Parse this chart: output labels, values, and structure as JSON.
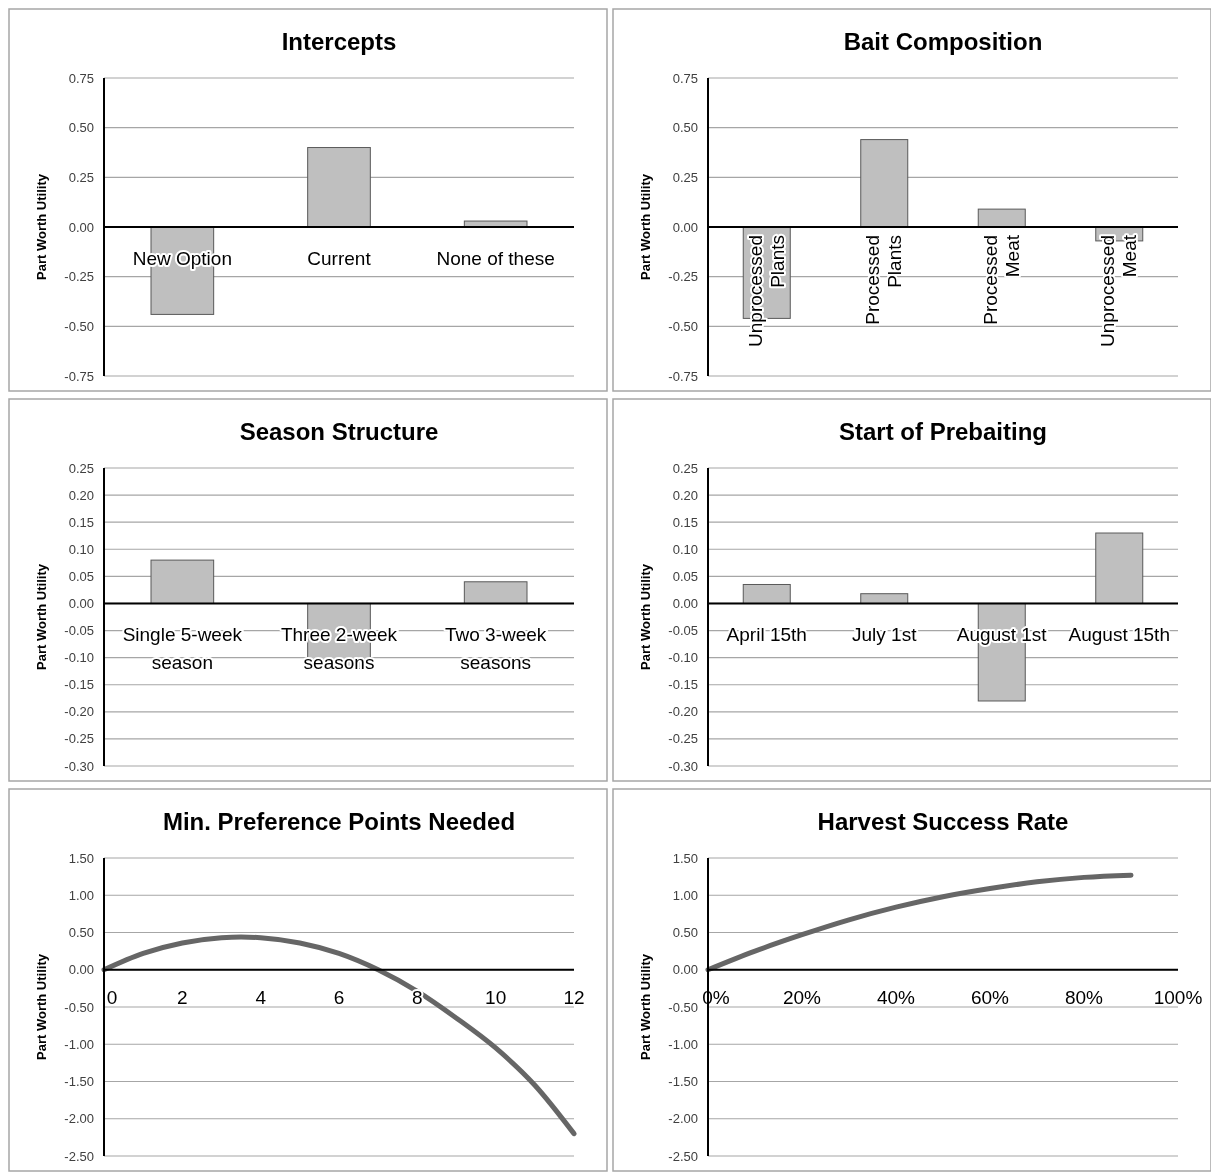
{
  "chart_data": [
    {
      "type": "bar",
      "title": "Intercepts",
      "ylabel": "Part Worth Utility",
      "categories": [
        "New Option",
        "Current",
        "None of these"
      ],
      "values": [
        -0.44,
        0.4,
        0.03
      ],
      "color": "#bfbfbf",
      "ylim": [
        -0.75,
        0.75
      ],
      "yticks": [
        {
          "value": -0.75,
          "label": "-0.75"
        },
        {
          "value": -0.5,
          "label": "-0.50"
        },
        {
          "value": -0.25,
          "label": "-0.25"
        },
        {
          "value": 0,
          "label": "0.00"
        },
        {
          "value": 0.25,
          "label": "0.25"
        },
        {
          "value": 0.5,
          "label": "0.50"
        },
        {
          "value": 0.75,
          "label": "0.75"
        }
      ],
      "grid": "y"
    },
    {
      "type": "bar",
      "title": "Bait Composition",
      "ylabel": "Part Worth Utility",
      "categories": [
        "Unprocessed Plants",
        "Processed Plants",
        "Processed Meat",
        "Unprocessed Meat"
      ],
      "values": [
        -0.46,
        0.44,
        0.09,
        -0.07
      ],
      "color": "#bfbfbf",
      "ylim": [
        -0.75,
        0.75
      ],
      "yticks": [
        {
          "value": -0.75,
          "label": "-0.75"
        },
        {
          "value": -0.5,
          "label": "-0.50"
        },
        {
          "value": -0.25,
          "label": "-0.25"
        },
        {
          "value": 0,
          "label": "0.00"
        },
        {
          "value": 0.25,
          "label": "0.25"
        },
        {
          "value": 0.5,
          "label": "0.50"
        },
        {
          "value": 0.75,
          "label": "0.75"
        }
      ],
      "grid": "y"
    },
    {
      "type": "bar",
      "title": "Season Structure",
      "ylabel": "Part Worth Utility",
      "categories": [
        "Single 5-week season",
        "Three 2-week seasons",
        "Two 3-week seasons"
      ],
      "values": [
        0.08,
        -0.12,
        0.04
      ],
      "color": "#bfbfbf",
      "ylim": [
        -0.3,
        0.25
      ],
      "yticks": [
        {
          "value": -0.3,
          "label": "-0.30"
        },
        {
          "value": -0.25,
          "label": "-0.25"
        },
        {
          "value": -0.2,
          "label": "-0.20"
        },
        {
          "value": -0.15,
          "label": "-0.15"
        },
        {
          "value": -0.1,
          "label": "-0.10"
        },
        {
          "value": -0.05,
          "label": "-0.05"
        },
        {
          "value": 0,
          "label": "0.00"
        },
        {
          "value": 0.05,
          "label": "0.05"
        },
        {
          "value": 0.1,
          "label": "0.10"
        },
        {
          "value": 0.15,
          "label": "0.15"
        },
        {
          "value": 0.2,
          "label": "0.20"
        },
        {
          "value": 0.25,
          "label": "0.25"
        }
      ],
      "grid": "y"
    },
    {
      "type": "bar",
      "title": "Start of Prebaiting",
      "ylabel": "Part Worth Utility",
      "categories": [
        "April 15th",
        "July 1st",
        "August 1st",
        "August 15th"
      ],
      "values": [
        0.035,
        0.018,
        -0.18,
        0.13
      ],
      "color": "#bfbfbf",
      "ylim": [
        -0.3,
        0.25
      ],
      "yticks": [
        {
          "value": -0.3,
          "label": "-0.30"
        },
        {
          "value": -0.25,
          "label": "-0.25"
        },
        {
          "value": -0.2,
          "label": "-0.20"
        },
        {
          "value": -0.15,
          "label": "-0.15"
        },
        {
          "value": -0.1,
          "label": "-0.10"
        },
        {
          "value": -0.05,
          "label": "-0.05"
        },
        {
          "value": 0,
          "label": "0.00"
        },
        {
          "value": 0.05,
          "label": "0.05"
        },
        {
          "value": 0.1,
          "label": "0.10"
        },
        {
          "value": 0.15,
          "label": "0.15"
        },
        {
          "value": 0.2,
          "label": "0.20"
        },
        {
          "value": 0.25,
          "label": "0.25"
        }
      ],
      "grid": "y"
    },
    {
      "type": "line",
      "title": "Min. Preference Points Needed",
      "ylabel": "Part Worth Utility",
      "x": [
        0,
        1,
        2,
        3,
        3.5,
        4,
        5,
        6,
        7,
        8,
        9,
        10,
        11,
        12
      ],
      "values": [
        0,
        0.22,
        0.36,
        0.43,
        0.44,
        0.43,
        0.36,
        0.22,
        0,
        -0.29,
        -0.65,
        -1.05,
        -1.55,
        -2.2
      ],
      "color": "#666666",
      "xlim": [
        0,
        12
      ],
      "xticks": [
        0,
        2,
        4,
        6,
        8,
        10,
        12
      ],
      "ylim": [
        -2.5,
        1.5
      ],
      "yticks": [
        {
          "value": -2.5,
          "label": "-2.50"
        },
        {
          "value": -2,
          "label": "-2.00"
        },
        {
          "value": -1.5,
          "label": "-1.50"
        },
        {
          "value": -1,
          "label": "-1.00"
        },
        {
          "value": -0.5,
          "label": "-0.50"
        },
        {
          "value": 0,
          "label": "0.00"
        },
        {
          "value": 0.5,
          "label": "0.50"
        },
        {
          "value": 1,
          "label": "1.00"
        },
        {
          "value": 1.5,
          "label": "1.50"
        }
      ],
      "grid": "y",
      "marker": "none"
    },
    {
      "type": "line",
      "title": "Harvest Success Rate",
      "ylabel": "Part Worth Utility",
      "x": [
        0,
        10,
        20,
        30,
        40,
        50,
        60,
        70,
        80,
        90
      ],
      "values": [
        0,
        0.25,
        0.47,
        0.67,
        0.84,
        0.98,
        1.09,
        1.18,
        1.24,
        1.27
      ],
      "color": "#666666",
      "xlim": [
        0,
        100
      ],
      "xticks": [
        {
          "value": 0,
          "label": "0%"
        },
        {
          "value": 20,
          "label": "20%"
        },
        {
          "value": 40,
          "label": "40%"
        },
        {
          "value": 60,
          "label": "60%"
        },
        {
          "value": 80,
          "label": "80%"
        },
        {
          "value": 100,
          "label": "100%"
        }
      ],
      "ylim": [
        -2.5,
        1.5
      ],
      "yticks": [
        {
          "value": -2.5,
          "label": "-2.50"
        },
        {
          "value": -2,
          "label": "-2.00"
        },
        {
          "value": -1.5,
          "label": "-1.50"
        },
        {
          "value": -1,
          "label": "-1.00"
        },
        {
          "value": -0.5,
          "label": "-0.50"
        },
        {
          "value": 0,
          "label": "0.00"
        },
        {
          "value": 0.5,
          "label": "0.50"
        },
        {
          "value": 1,
          "label": "1.00"
        },
        {
          "value": 1.5,
          "label": "1.50"
        }
      ],
      "grid": "y",
      "marker": "none"
    }
  ]
}
